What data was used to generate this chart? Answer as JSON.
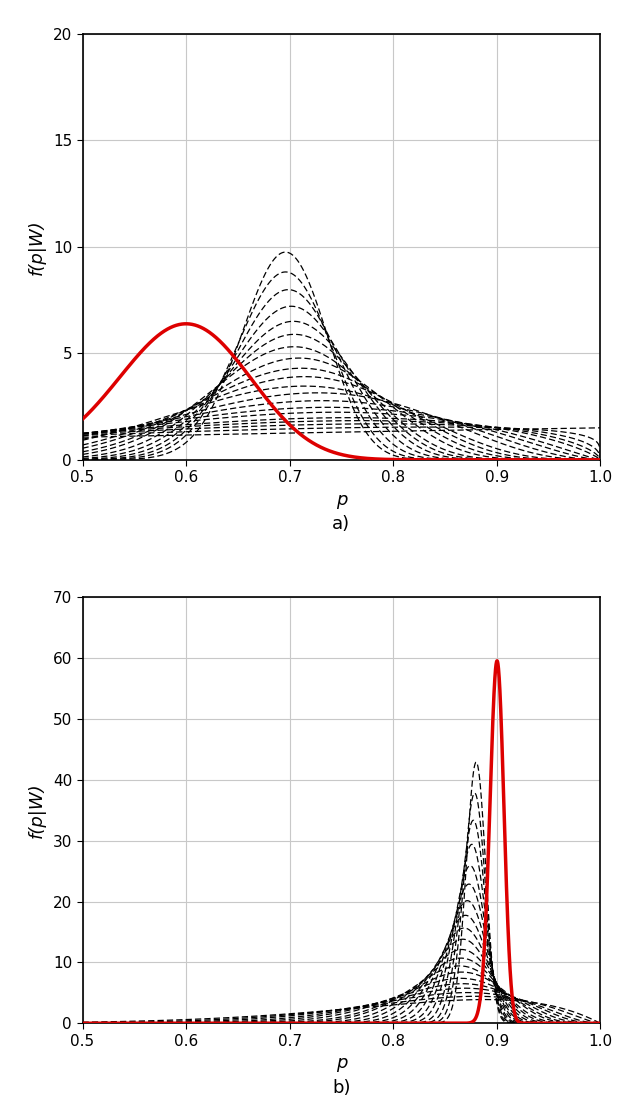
{
  "panel_a": {
    "red_alpha": 37,
    "red_beta": 25,
    "ylim": [
      0,
      20
    ],
    "yticks": [
      0,
      5,
      10,
      15,
      20
    ],
    "black_curves": [
      {
        "alpha": 1.5,
        "beta": 1.0
      },
      {
        "alpha": 2.0,
        "beta": 1.2
      },
      {
        "alpha": 2.5,
        "beta": 1.4
      },
      {
        "alpha": 3.0,
        "beta": 1.6
      },
      {
        "alpha": 3.5,
        "beta": 1.8
      },
      {
        "alpha": 4.5,
        "beta": 2.2
      },
      {
        "alpha": 5.5,
        "beta": 2.6
      },
      {
        "alpha": 7.0,
        "beta": 3.2
      },
      {
        "alpha": 9.0,
        "beta": 4.0
      },
      {
        "alpha": 11.0,
        "beta": 5.0
      },
      {
        "alpha": 14.0,
        "beta": 6.2
      },
      {
        "alpha": 17.0,
        "beta": 7.5
      },
      {
        "alpha": 21.0,
        "beta": 9.2
      },
      {
        "alpha": 26.0,
        "beta": 11.5
      },
      {
        "alpha": 32.0,
        "beta": 14.0
      },
      {
        "alpha": 39.0,
        "beta": 17.0
      },
      {
        "alpha": 48.0,
        "beta": 21.0
      },
      {
        "alpha": 59.0,
        "beta": 26.0
      },
      {
        "alpha": 72.0,
        "beta": 32.0
      },
      {
        "alpha": 88.0,
        "beta": 39.0
      }
    ],
    "label": "a)"
  },
  "panel_b": {
    "red_alpha": 1800,
    "red_beta": 200,
    "ylim": [
      0,
      70
    ],
    "yticks": [
      0,
      10,
      20,
      30,
      40,
      50,
      60,
      70
    ],
    "black_curves": [
      {
        "alpha": 9.0,
        "beta": 2.0
      },
      {
        "alpha": 12.0,
        "beta": 2.5
      },
      {
        "alpha": 16.0,
        "beta": 3.2
      },
      {
        "alpha": 21.0,
        "beta": 4.0
      },
      {
        "alpha": 27.0,
        "beta": 5.0
      },
      {
        "alpha": 35.0,
        "beta": 6.3
      },
      {
        "alpha": 45.0,
        "beta": 7.8
      },
      {
        "alpha": 57.0,
        "beta": 9.8
      },
      {
        "alpha": 73.0,
        "beta": 12.2
      },
      {
        "alpha": 93.0,
        "beta": 15.2
      },
      {
        "alpha": 120.0,
        "beta": 19.2
      },
      {
        "alpha": 153.0,
        "beta": 24.0
      },
      {
        "alpha": 195.0,
        "beta": 30.0
      },
      {
        "alpha": 249.0,
        "beta": 37.5
      },
      {
        "alpha": 318.0,
        "beta": 47.0
      },
      {
        "alpha": 405.0,
        "beta": 59.0
      },
      {
        "alpha": 517.0,
        "beta": 74.0
      },
      {
        "alpha": 660.0,
        "beta": 93.0
      },
      {
        "alpha": 842.0,
        "beta": 117.0
      },
      {
        "alpha": 1074.0,
        "beta": 147.0
      }
    ],
    "label": "b)"
  },
  "xlim": [
    0.5,
    1.0
  ],
  "xticks": [
    0.5,
    0.6,
    0.7,
    0.8,
    0.9,
    1.0
  ],
  "xlabel": "p",
  "ylabel": "f(p|W)",
  "red_color": "#dd0000",
  "black_color": "#000000",
  "grid_color": "#c8c8c8",
  "bg_color": "#ffffff",
  "fig_bg_color": "#ffffff"
}
